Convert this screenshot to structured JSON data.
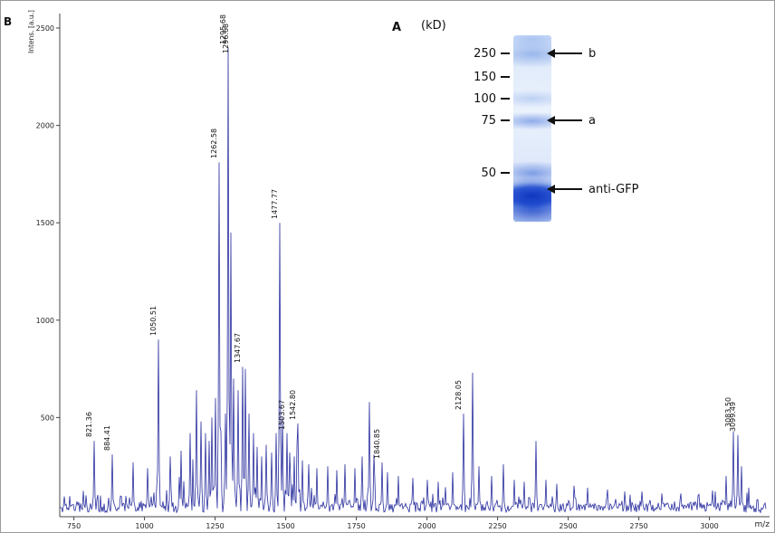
{
  "figure": {
    "panel_b": "B",
    "panel_a": "A"
  },
  "chart_data": {
    "type": "line",
    "title": "",
    "xlabel": "m/z",
    "ylabel": "Intens. [a.u.]",
    "xlim": [
      700,
      3200
    ],
    "ylim": [
      0,
      2500
    ],
    "x_ticks": [
      750,
      1000,
      1250,
      1500,
      1750,
      2000,
      2250,
      2500,
      2750,
      3000
    ],
    "y_ticks": [
      500,
      1000,
      1500,
      2000,
      2500
    ],
    "grid": false,
    "legend": false,
    "line_color": "#2a2f9e",
    "labeled_peaks": [
      {
        "mz": 821.36,
        "intensity": 380,
        "label": "821.36"
      },
      {
        "mz": 884.41,
        "intensity": 310,
        "label": "884.41"
      },
      {
        "mz": 1050.51,
        "intensity": 900,
        "label": "1050.51"
      },
      {
        "mz": 1262.58,
        "intensity": 1810,
        "label": "1262.58"
      },
      {
        "mz": 1295.68,
        "intensity": 2400,
        "label": "1295.68"
      },
      {
        "mz": 1296.68,
        "intensity": 2350,
        "label": "1296.68"
      },
      {
        "mz": 1347.67,
        "intensity": 760,
        "label": "1347.67"
      },
      {
        "mz": 1477.77,
        "intensity": 1500,
        "label": "1477.77"
      },
      {
        "mz": 1503.67,
        "intensity": 420,
        "label": "1503.67"
      },
      {
        "mz": 1542.8,
        "intensity": 470,
        "label": "1542.80"
      },
      {
        "mz": 1840.85,
        "intensity": 270,
        "label": "1840.85"
      },
      {
        "mz": 2128.05,
        "intensity": 520,
        "label": "2128.05"
      },
      {
        "mz": 3083.5,
        "intensity": 430,
        "label": "3083.50"
      },
      {
        "mz": 3099.49,
        "intensity": 410,
        "label": "3099.49"
      }
    ],
    "unlabeled_peaks": [
      {
        "mz": 960,
        "intensity": 270
      },
      {
        "mz": 1010,
        "intensity": 240
      },
      {
        "mz": 1090,
        "intensity": 300
      },
      {
        "mz": 1130,
        "intensity": 330
      },
      {
        "mz": 1160,
        "intensity": 420
      },
      {
        "mz": 1185,
        "intensity": 640
      },
      {
        "mz": 1200,
        "intensity": 480
      },
      {
        "mz": 1215,
        "intensity": 420
      },
      {
        "mz": 1228,
        "intensity": 380
      },
      {
        "mz": 1240,
        "intensity": 500
      },
      {
        "mz": 1252,
        "intensity": 600
      },
      {
        "mz": 1270,
        "intensity": 430
      },
      {
        "mz": 1285,
        "intensity": 520
      },
      {
        "mz": 1305,
        "intensity": 1450
      },
      {
        "mz": 1316,
        "intensity": 700
      },
      {
        "mz": 1330,
        "intensity": 640
      },
      {
        "mz": 1358,
        "intensity": 750
      },
      {
        "mz": 1370,
        "intensity": 520
      },
      {
        "mz": 1385,
        "intensity": 420
      },
      {
        "mz": 1400,
        "intensity": 350
      },
      {
        "mz": 1415,
        "intensity": 300
      },
      {
        "mz": 1432,
        "intensity": 360
      },
      {
        "mz": 1450,
        "intensity": 320
      },
      {
        "mz": 1465,
        "intensity": 420
      },
      {
        "mz": 1490,
        "intensity": 500
      },
      {
        "mz": 1515,
        "intensity": 320
      },
      {
        "mz": 1530,
        "intensity": 300
      },
      {
        "mz": 1558,
        "intensity": 280
      },
      {
        "mz": 1580,
        "intensity": 260
      },
      {
        "mz": 1610,
        "intensity": 240
      },
      {
        "mz": 1650,
        "intensity": 250
      },
      {
        "mz": 1680,
        "intensity": 230
      },
      {
        "mz": 1710,
        "intensity": 260
      },
      {
        "mz": 1745,
        "intensity": 240
      },
      {
        "mz": 1770,
        "intensity": 300
      },
      {
        "mz": 1795,
        "intensity": 580
      },
      {
        "mz": 1812,
        "intensity": 310
      },
      {
        "mz": 1860,
        "intensity": 220
      },
      {
        "mz": 1900,
        "intensity": 200
      },
      {
        "mz": 1950,
        "intensity": 190
      },
      {
        "mz": 2000,
        "intensity": 180
      },
      {
        "mz": 2040,
        "intensity": 170
      },
      {
        "mz": 2090,
        "intensity": 220
      },
      {
        "mz": 2160,
        "intensity": 730
      },
      {
        "mz": 2185,
        "intensity": 250
      },
      {
        "mz": 2230,
        "intensity": 200
      },
      {
        "mz": 2270,
        "intensity": 260
      },
      {
        "mz": 2310,
        "intensity": 180
      },
      {
        "mz": 2345,
        "intensity": 170
      },
      {
        "mz": 2385,
        "intensity": 380
      },
      {
        "mz": 2420,
        "intensity": 180
      },
      {
        "mz": 2460,
        "intensity": 160
      },
      {
        "mz": 2520,
        "intensity": 150
      },
      {
        "mz": 2570,
        "intensity": 140
      },
      {
        "mz": 2640,
        "intensity": 130
      },
      {
        "mz": 2700,
        "intensity": 120
      },
      {
        "mz": 2760,
        "intensity": 120
      },
      {
        "mz": 2830,
        "intensity": 110
      },
      {
        "mz": 2900,
        "intensity": 110
      },
      {
        "mz": 2960,
        "intensity": 100
      },
      {
        "mz": 3020,
        "intensity": 120
      },
      {
        "mz": 3060,
        "intensity": 200
      },
      {
        "mz": 3115,
        "intensity": 250
      },
      {
        "mz": 3140,
        "intensity": 140
      }
    ]
  },
  "gel": {
    "kd_label": "(kD)",
    "markers": [
      {
        "value": "250"
      },
      {
        "value": "150"
      },
      {
        "value": "100"
      },
      {
        "value": "75"
      },
      {
        "value": "50"
      }
    ],
    "arrows": [
      {
        "label": "b"
      },
      {
        "label": "a"
      },
      {
        "label": "anti-GFP"
      }
    ]
  }
}
